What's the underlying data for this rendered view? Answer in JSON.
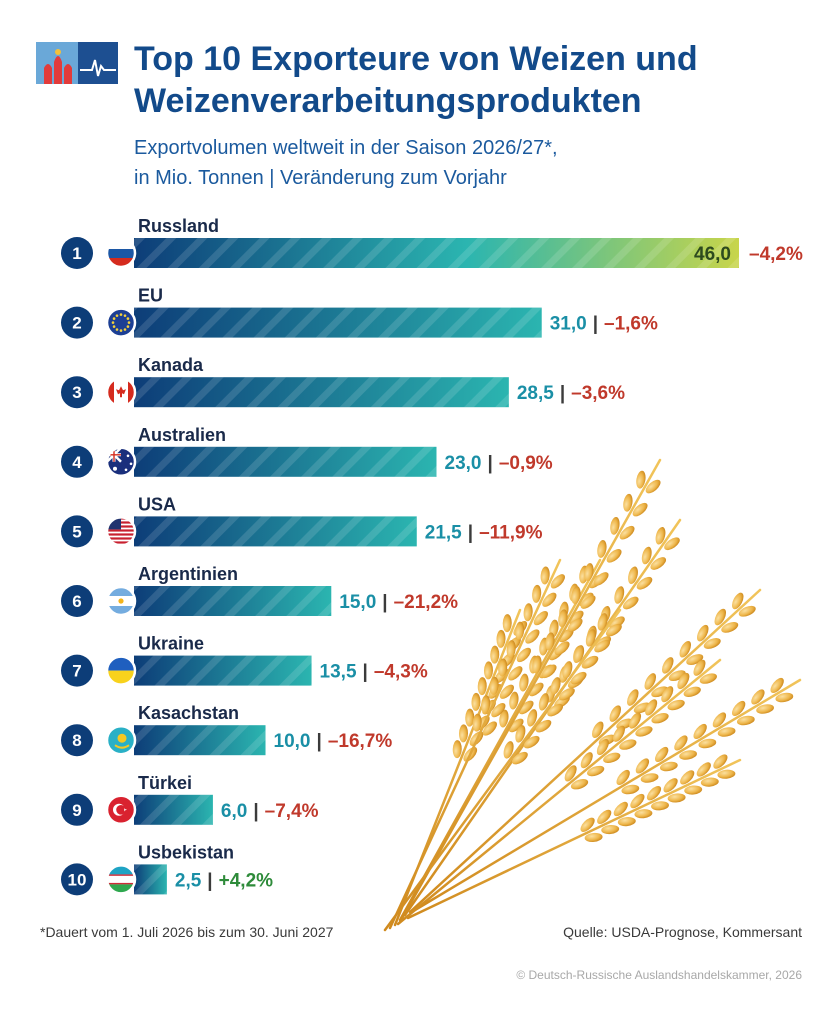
{
  "header": {
    "title": "Top 10 Exporteure von Weizen und Weizenverarbeitungsprodukten",
    "subtitle_line1": "Exportvolumen weltweit in der Saison 2026/27*,",
    "subtitle_line2": "in Mio. Tonnen | Veränderung zum Vorjahr"
  },
  "chart_data": {
    "type": "bar",
    "orientation": "horizontal",
    "categories": [
      "Russland",
      "EU",
      "Kanada",
      "Australien",
      "USA",
      "Argentinien",
      "Ukraine",
      "Kasachstan",
      "Türkei",
      "Usbekistan"
    ],
    "ranks": [
      "1",
      "2",
      "3",
      "4",
      "5",
      "6",
      "7",
      "8",
      "9",
      "10"
    ],
    "values": [
      46.0,
      31.0,
      28.5,
      23.0,
      21.5,
      15.0,
      13.5,
      10.0,
      6.0,
      2.5
    ],
    "value_labels": [
      "46,0",
      "31,0",
      "28,5",
      "23,0",
      "21,5",
      "15,0",
      "13,5",
      "10,0",
      "6,0",
      "2,5"
    ],
    "change_labels": [
      "–4,2%",
      "–1,6%",
      "–3,6%",
      "–0,9%",
      "–11,9%",
      "–21,2%",
      "–4,3%",
      "–16,7%",
      "–7,4%",
      "+4,2%"
    ],
    "separator": "|",
    "flag_icons": [
      "flag-russia-icon",
      "flag-eu-icon",
      "flag-canada-icon",
      "flag-australia-icon",
      "flag-usa-icon",
      "flag-argentina-icon",
      "flag-ukraine-icon",
      "flag-kazakhstan-icon",
      "flag-turkey-icon",
      "flag-uzbekistan-icon"
    ],
    "unit": "Mio. Tonnen",
    "colors": {
      "rank_circle": "#0d3d78",
      "bar_start": "#0d3d78",
      "bar_end": "#2bb5b0",
      "top_bar_end": "#c8d54a",
      "value_text": "#1a8fa6",
      "negative_change": "#c0392b",
      "positive_change": "#2e8b3a",
      "label_text": "#1a2a4a"
    }
  },
  "footer": {
    "footnote": "*Dauert vom 1. Juli 2026 bis zum 30. Juni 2027",
    "source": "Quelle: USDA-Prognose, Kommersant",
    "copyright": "© Deutsch-Russische Auslandshandelskammer, 2026"
  }
}
